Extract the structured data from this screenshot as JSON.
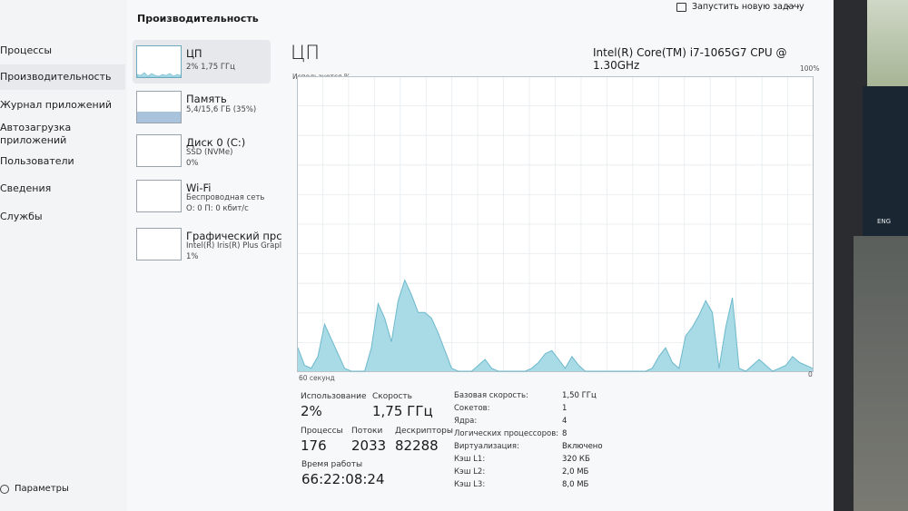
{
  "window": {
    "page_title": "Производительность",
    "new_task_label": "Запустить новую задачу",
    "more_label": "···"
  },
  "nav": {
    "items": [
      {
        "label": "Процессы"
      },
      {
        "label": "Производительность"
      },
      {
        "label": "Журнал приложений"
      },
      {
        "label": "Автозагрузка"
      },
      {
        "label": "приложений"
      },
      {
        "label": "Пользователи"
      },
      {
        "label": "Сведения"
      },
      {
        "label": "Службы"
      }
    ],
    "settings_label": "Параметры"
  },
  "devices": [
    {
      "name": "ЦП",
      "sub1": "2% 1,75 ГГц",
      "sub2": ""
    },
    {
      "name": "Память",
      "sub1": "5,4/15,6 ГБ (35%)",
      "sub2": ""
    },
    {
      "name": "Диск 0 (C:)",
      "sub1": "SSD (NVMe)",
      "sub2": "0%"
    },
    {
      "name": "Wi-Fi",
      "sub1": "Беспроводная сеть",
      "sub2": "О: 0 П: 0 кбит/с"
    },
    {
      "name": "Графический прс",
      "sub1": "Intel(R) Iris(R) Plus Grapl",
      "sub2": "1%"
    }
  ],
  "main": {
    "title": "ЦП",
    "cpu_model": "Intel(R) Core(TM) i7-1065G7 CPU @ 1.30GHz",
    "axis_label": "Используется %",
    "axis_max": "100%",
    "time_left": "60 секунд",
    "time_right": "0"
  },
  "stats": {
    "usage_label": "Использование",
    "usage_value": "2%",
    "speed_label": "Скорость",
    "speed_value": "1,75 ГГц",
    "processes_label": "Процессы",
    "processes_value": "176",
    "threads_label": "Потоки",
    "threads_value": "2033",
    "handles_label": "Дескрипторы",
    "handles_value": "82288",
    "uptime_label": "Время работы",
    "uptime_value": "66:22:08:24"
  },
  "specs": [
    {
      "label": "Базовая скорость:",
      "value": "1,50 ГГц"
    },
    {
      "label": "Сокетов:",
      "value": "1"
    },
    {
      "label": "Ядра:",
      "value": "4"
    },
    {
      "label": "Логических процессоров:",
      "value": "8"
    },
    {
      "label": "Виртуализация:",
      "value": "Включено"
    },
    {
      "label": "Кэш L1:",
      "value": "320 КБ"
    },
    {
      "label": "Кэш L2:",
      "value": "2,0 МБ"
    },
    {
      "label": "Кэш L3:",
      "value": "8,0 МБ"
    }
  ],
  "taskbar": {
    "lang": "ENG"
  },
  "chart_data": {
    "type": "area",
    "ylim": [
      0,
      100
    ],
    "color": "#a8dbe6",
    "stroke": "#6db8cc",
    "values": [
      8,
      2,
      1,
      5,
      16,
      11,
      6,
      1,
      0,
      0,
      0,
      8,
      23,
      18,
      10,
      24,
      31,
      26,
      20,
      20,
      18,
      13,
      7,
      1,
      0,
      0,
      0,
      2,
      4,
      1,
      0,
      0,
      0,
      0,
      0,
      1,
      3,
      6,
      7,
      4,
      1,
      5,
      2,
      0,
      0,
      0,
      0,
      0,
      0,
      0,
      0,
      0,
      0,
      1,
      5,
      8,
      3,
      1,
      12,
      15,
      19,
      24,
      20,
      1,
      15,
      25,
      1,
      0,
      2,
      4,
      2,
      0,
      1,
      2,
      5,
      3,
      2,
      1
    ]
  }
}
